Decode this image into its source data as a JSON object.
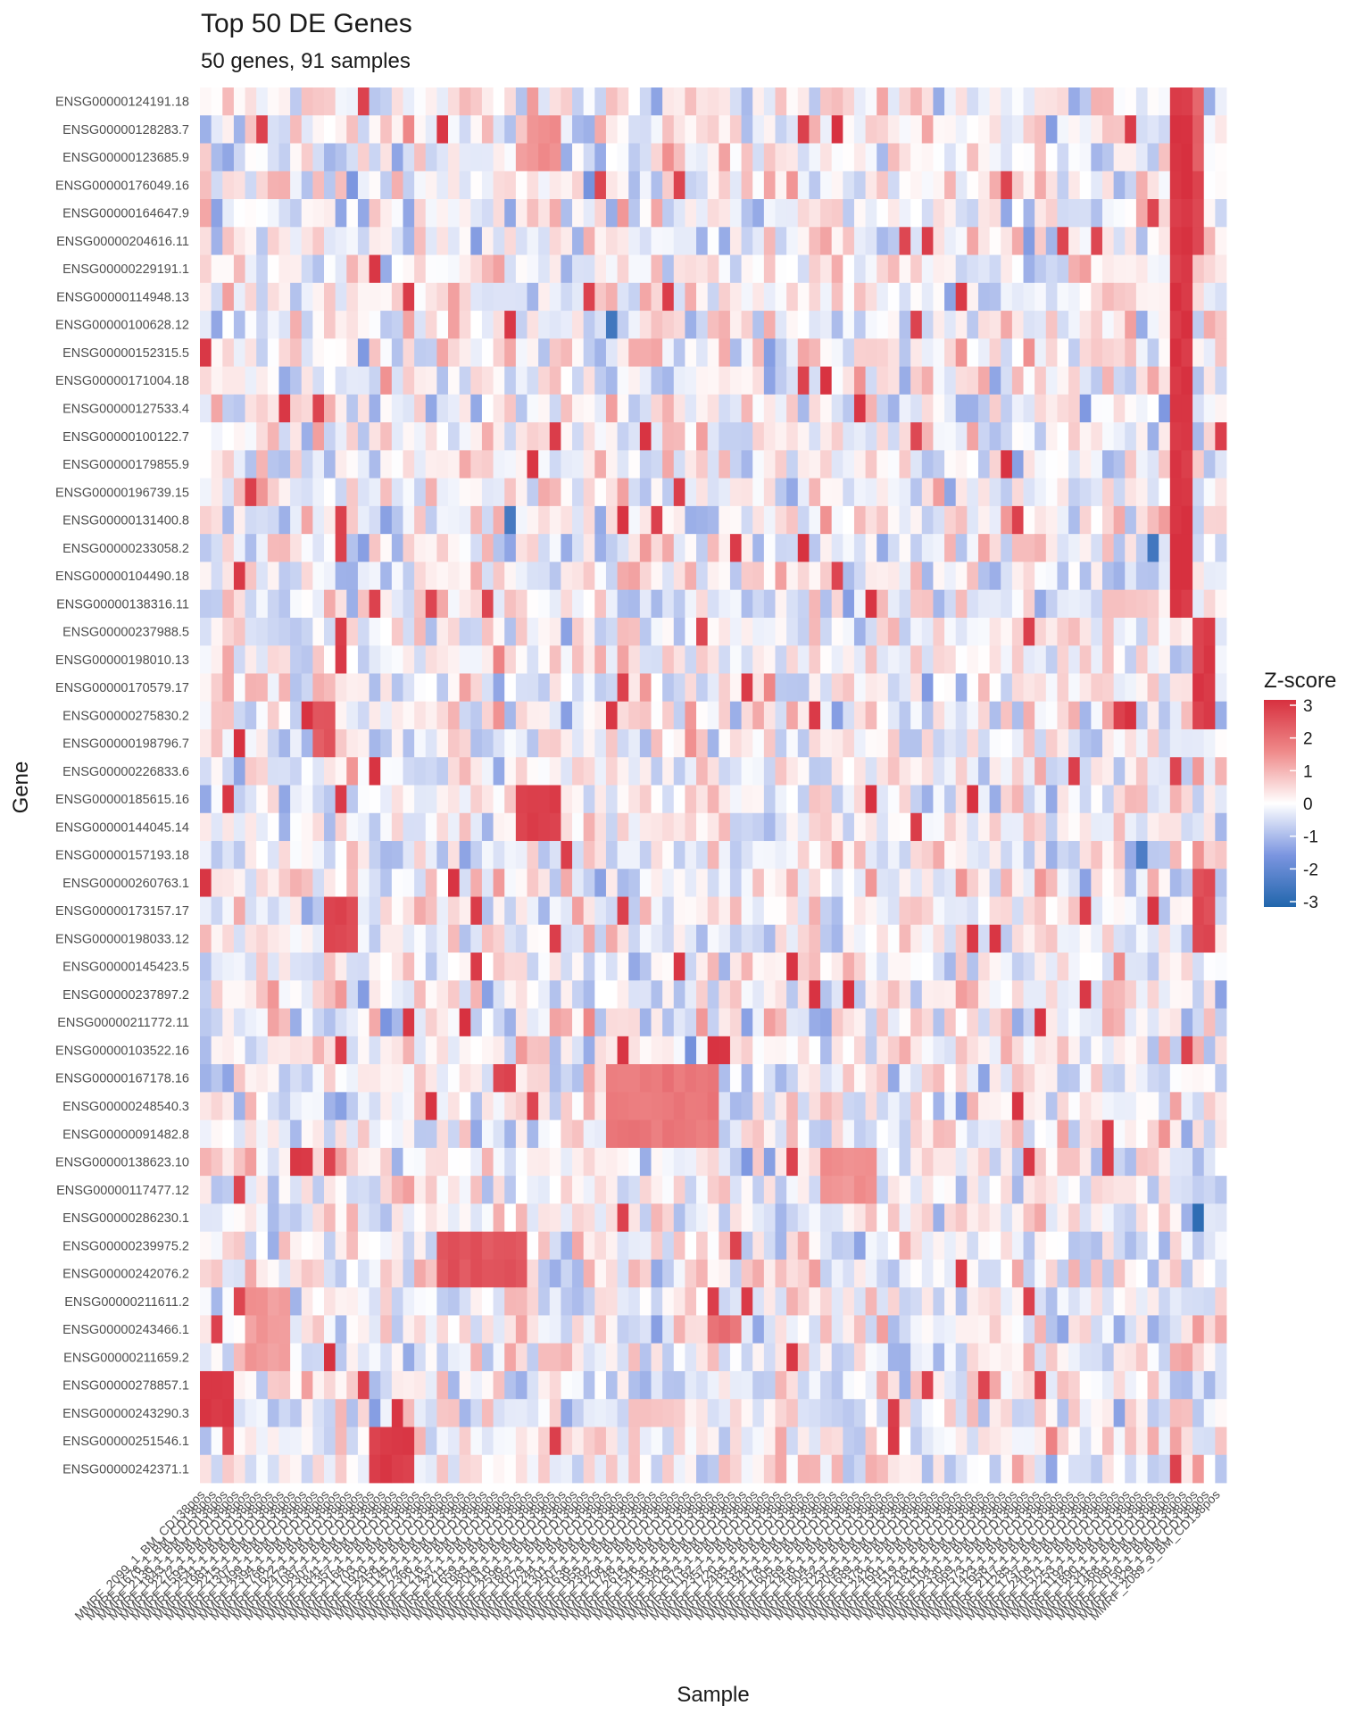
{
  "chart_data": {
    "type": "heatmap",
    "title": "Top 50 DE Genes",
    "subtitle": "50 genes, 91 samples",
    "xlabel": "Sample",
    "ylabel": "Gene",
    "legend_title": "Z-score",
    "legend_placement": "right",
    "value_range": [
      -3,
      3
    ],
    "legend_ticks": [
      "3",
      "2",
      "1",
      "0",
      "-1",
      "-2",
      "-3"
    ],
    "colors": {
      "low": "#2166ac",
      "low_mid": "#7b95e0",
      "mid": "#ffffff",
      "high_mid": "#ef8a8a",
      "high": "#d7303f"
    },
    "genes": [
      "ENSG00000124191.18",
      "ENSG00000128283.7",
      "ENSG00000123685.9",
      "ENSG00000176049.16",
      "ENSG00000164647.9",
      "ENSG00000204616.11",
      "ENSG00000229191.1",
      "ENSG00000114948.13",
      "ENSG00000100628.12",
      "ENSG00000152315.5",
      "ENSG00000171004.18",
      "ENSG00000127533.4",
      "ENSG00000100122.7",
      "ENSG00000179855.9",
      "ENSG00000196739.15",
      "ENSG00000131400.8",
      "ENSG00000233058.2",
      "ENSG00000104490.18",
      "ENSG00000138316.11",
      "ENSG00000237988.5",
      "ENSG00000198010.13",
      "ENSG00000170579.17",
      "ENSG00000275830.2",
      "ENSG00000198796.7",
      "ENSG00000226833.6",
      "ENSG00000185615.16",
      "ENSG00000144045.14",
      "ENSG00000157193.18",
      "ENSG00000260763.1",
      "ENSG00000173157.17",
      "ENSG00000198033.12",
      "ENSG00000145423.5",
      "ENSG00000237897.2",
      "ENSG00000211772.11",
      "ENSG00000103522.16",
      "ENSG00000167178.16",
      "ENSG00000248540.3",
      "ENSG00000091482.8",
      "ENSG00000138623.10",
      "ENSG00000117477.12",
      "ENSG00000286230.1",
      "ENSG00000239975.2",
      "ENSG00000242076.2",
      "ENSG00000211611.2",
      "ENSG00000243466.1",
      "ENSG00000211659.2",
      "ENSG00000278857.1",
      "ENSG00000243290.3",
      "ENSG00000251546.1",
      "ENSG00000242371.1"
    ],
    "samples": [
      "MMRF_2099_1_BM_CD138pos",
      "MMRF_1676_1_BM_CD138pos",
      "MMRF_2136_1_BM_CD138pos",
      "MMRF_1843_1_BM_CD138pos",
      "MMRF_2272_1_BM_CD138pos",
      "MMRF_1593_1_BM_CD138pos",
      "MMRF_2541_1_BM_CD138pos",
      "MMRF_1981_1_BM_CD138pos",
      "MMRF_2215_1_BM_CD138pos",
      "MMRF_1307_1_BM_CD138pos",
      "MMRF_1499_1_BM_CD138pos",
      "MMRF_2394_1_BM_CD138pos",
      "MMRF_1766_1_BM_CD138pos",
      "MMRF_1622_1_BM_CD138pos",
      "MMRF_2473_1_BM_CD138pos",
      "MMRF_1087_1_BM_CD138pos",
      "MMRF_2307_1_BM_CD138pos",
      "MMRF_1841_1_BM_CD138pos",
      "MMRF_1357_1_BM_CD138pos",
      "MMRF_2164_1_BM_CD138pos",
      "MMRF_1703_1_BM_CD138pos",
      "MMRF_1920_1_BM_CD138pos",
      "MMRF_2458_1_BM_CD138pos",
      "MMRF_1145_1_BM_CD138pos",
      "MMRF_1772_1_BM_CD138pos",
      "MMRF_2366_1_BM_CD138pos",
      "MMRF_1216_1_BM_CD138pos",
      "MMRF_1437_1_BM_CD138pos",
      "MMRF_2211_1_BM_CD138pos",
      "MMRF_1659_1_BM_CD138pos",
      "MMRF_1983_1_BM_CD138pos",
      "MMRF_2049_1_BM_CD138pos",
      "MMRF_1410_1_BM_CD138pos",
      "MMRF_2596_1_BM_CD138pos",
      "MMRF_1862_1_BM_CD138pos",
      "MMRF_1079_1_BM_CD138pos",
      "MMRF_2244_1_BM_CD138pos",
      "MMRF_1301_1_BM_CD138pos",
      "MMRF_2507_1_BM_CD138pos",
      "MMRF_1636_1_BM_CD138pos",
      "MMRF_1955_1_BM_CD138pos",
      "MMRF_2392_1_BM_CD138pos",
      "MMRF_1208_1_BM_CD138pos",
      "MMRF_1748_1_BM_CD138pos",
      "MMRF_2618_1_BM_CD138pos",
      "MMRF_1546_1_BM_CD138pos",
      "MMRF_2130_1_BM_CD138pos",
      "MMRF_1394_1_BM_CD138pos",
      "MMRF_2029_1_BM_CD138pos",
      "MMRF_1873_1_BM_CD138pos",
      "MMRF_1162_1_BM_CD138pos",
      "MMRF_2357_1_BM_CD138pos",
      "MMRF_1720_1_BM_CD138pos",
      "MMRF_2485_1_BM_CD138pos",
      "MMRF_1332_1_BM_CD138pos",
      "MMRF_1941_1_BM_CD138pos",
      "MMRF_2178_1_BM_CD138pos",
      "MMRF_1605_1_BM_CD138pos",
      "MMRF_2269_1_BM_CD138pos",
      "MMRF_1456_1_BM_CD138pos",
      "MMRF_1804_1_BM_CD138pos",
      "MMRF_2552_1_BM_CD138pos",
      "MMRF_1237_1_BM_CD138pos",
      "MMRF_2095_1_BM_CD138pos",
      "MMRF_1689_1_BM_CD138pos",
      "MMRF_1378_1_BM_CD138pos",
      "MMRF_2426_1_BM_CD138pos",
      "MMRF_1991_1_BM_CD138pos",
      "MMRF_1519_1_BM_CD138pos",
      "MMRF_2203_1_BM_CD138pos",
      "MMRF_1826_1_BM_CD138pos",
      "MMRF_1104_1_BM_CD138pos",
      "MMRF_2330_1_BM_CD138pos",
      "MMRF_1669_1_BM_CD138pos",
      "MMRF_2573_1_BM_CD138pos",
      "MMRF_1423_1_BM_CD138pos",
      "MMRF_1958_1_BM_CD138pos",
      "MMRF_2117_1_BM_CD138pos",
      "MMRF_1285_1_BM_CD138pos",
      "MMRF_1737_1_BM_CD138pos",
      "MMRF_2409_1_BM_CD138pos",
      "MMRF_1571_1_BM_CD138pos",
      "MMRF_2253_1_BM_CD138pos",
      "MMRF_1192_1_BM_CD138pos",
      "MMRF_1890_1_BM_CD138pos",
      "MMRF_2341_1_BM_CD138pos",
      "MMRF_1468_1_BM_CD138pos",
      "MMRF_2080_1_BM_CD138pos",
      "MMRF_1750_1_BM_CD138pos",
      "MMRF_1329_1_BM_CD138pos",
      "MMRF_2089_3_BM_CD138pos"
    ],
    "blocks": [
      {
        "genes": [
          0,
          18
        ],
        "samples": [
          86,
          87
        ],
        "value": 2.9
      },
      {
        "genes": [
          0,
          3
        ],
        "samples": [
          88,
          88
        ],
        "value": 2.2
      },
      {
        "genes": [
          3,
          5
        ],
        "samples": [
          88,
          88
        ],
        "value": 2.7
      },
      {
        "genes": [
          19,
          22
        ],
        "samples": [
          88,
          89
        ],
        "value": 2.8
      },
      {
        "genes": [
          28,
          30
        ],
        "samples": [
          88,
          89
        ],
        "value": 2.6
      },
      {
        "genes": [
          46,
          47
        ],
        "samples": [
          0,
          2
        ],
        "value": 2.8
      },
      {
        "genes": [
          48,
          49
        ],
        "samples": [
          15,
          18
        ],
        "value": 2.8
      },
      {
        "genes": [
          41,
          42
        ],
        "samples": [
          21,
          28
        ],
        "value": 2.4
      },
      {
        "genes": [
          35,
          37
        ],
        "samples": [
          36,
          45
        ],
        "value": 1.8
      },
      {
        "genes": [
          25,
          26
        ],
        "samples": [
          28,
          31
        ],
        "value": 2.7
      },
      {
        "genes": [
          22,
          23
        ],
        "samples": [
          10,
          11
        ],
        "value": 2.3
      },
      {
        "genes": [
          29,
          30
        ],
        "samples": [
          11,
          13
        ],
        "value": 2.6
      },
      {
        "genes": [
          38,
          39
        ],
        "samples": [
          55,
          59
        ],
        "value": 1.4
      },
      {
        "genes": [
          1,
          2
        ],
        "samples": [
          29,
          31
        ],
        "value": 1.4
      },
      {
        "genes": [
          43,
          45
        ],
        "samples": [
          4,
          7
        ],
        "value": 1.3
      },
      {
        "genes": [
          44,
          44
        ],
        "samples": [
          45,
          47
        ],
        "value": 1.9
      },
      {
        "genes": [
          40,
          40
        ],
        "samples": [
          88,
          88
        ],
        "value": -2.8
      },
      {
        "genes": [
          16,
          16
        ],
        "samples": [
          84,
          84
        ],
        "value": -2.6
      },
      {
        "genes": [
          15,
          15
        ],
        "samples": [
          27,
          27
        ],
        "value": -2.4
      },
      {
        "genes": [
          8,
          8
        ],
        "samples": [
          36,
          36
        ],
        "value": -2.5
      },
      {
        "genes": [
          27,
          27
        ],
        "samples": [
          83,
          83
        ],
        "value": -2.3
      }
    ]
  }
}
